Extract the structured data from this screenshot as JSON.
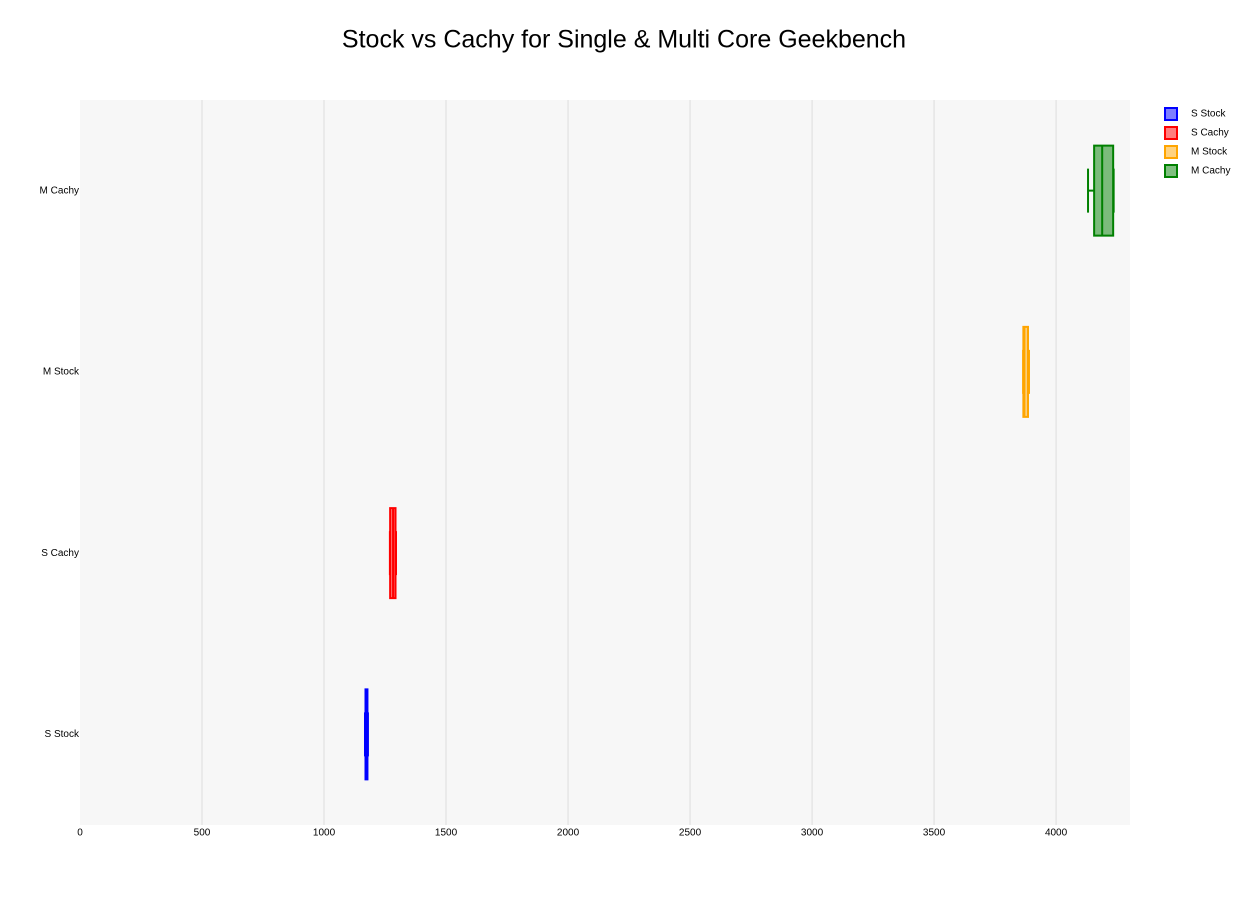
{
  "chart_data": {
    "type": "box",
    "title": "Stock vs Cachy for Single & Multi Core Geekbench",
    "orientation": "horizontal",
    "series": [
      {
        "name": "S Stock",
        "color": "#0000ff",
        "min": 1168,
        "q1": 1170,
        "median": 1175,
        "q3": 1178,
        "max": 1180
      },
      {
        "name": "S Cachy",
        "color": "#ff0000",
        "min": 1270,
        "q1": 1271,
        "median": 1283,
        "q3": 1293,
        "max": 1295
      },
      {
        "name": "M Stock",
        "color": "#ffa500",
        "min": 3865,
        "q1": 3866,
        "median": 3870,
        "q3": 3885,
        "max": 3889
      },
      {
        "name": "M Cachy",
        "color": "#008000",
        "min": 4131,
        "q1": 4156,
        "median": 4189,
        "q3": 4234,
        "max": 4236
      }
    ],
    "xlim": [
      0,
      4303
    ],
    "xticks": [
      0,
      500,
      1000,
      1500,
      2000,
      2500,
      3000,
      3500,
      4000
    ],
    "grid": true,
    "legend": "top-right"
  }
}
